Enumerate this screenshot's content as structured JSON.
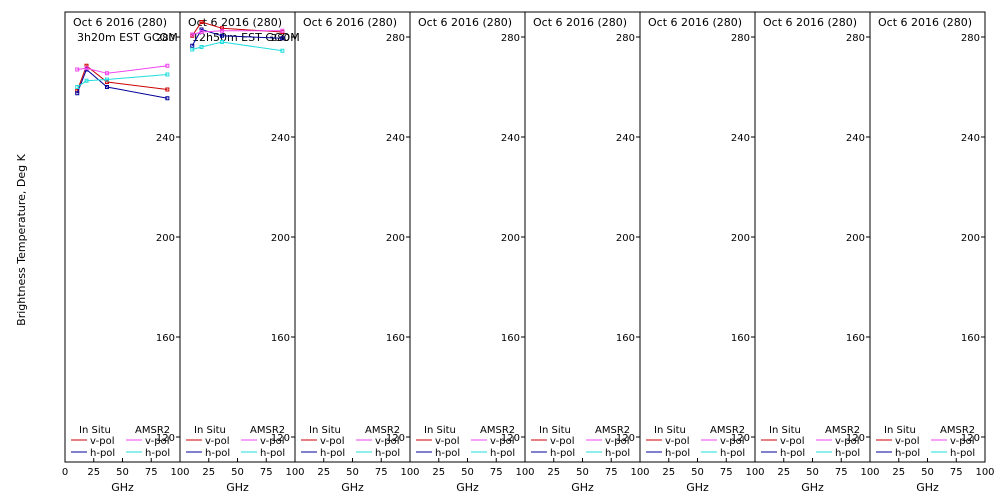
{
  "chart_data": {
    "type": "line",
    "ylabel": "Brightness Temperature, Deg K",
    "xlabel": "GHz",
    "xlim": [
      0,
      100
    ],
    "ylim": [
      110,
      290
    ],
    "x_ticks": [
      0,
      25,
      50,
      75,
      100
    ],
    "y_ticks": [
      120,
      160,
      200,
      240,
      280
    ],
    "legend": {
      "in_situ_header": "In Situ",
      "amsr2_header": "AMSR2",
      "v_pol": "v-pol",
      "h_pol": "h-pol"
    },
    "colors": {
      "in_situ_v": "#cc0000",
      "in_situ_h": "#000099",
      "amsr2_v": "#ee44ee",
      "amsr2_h": "#22dddd"
    },
    "panels": [
      {
        "title": "Oct 6 2016 (280)",
        "subtitle": "3h20m EST GCOM",
        "series": [
          {
            "name": "In Situ v-pol",
            "key": "in_situ_v",
            "x": [
              10.65,
              18.7,
              36.5,
              89
            ],
            "y": [
              258.5,
              268.5,
              262,
              259
            ]
          },
          {
            "name": "In Situ h-pol",
            "key": "in_situ_h",
            "x": [
              10.65,
              18.7,
              36.5,
              89
            ],
            "y": [
              257.5,
              267,
              260,
              255.5
            ]
          },
          {
            "name": "AMSR2 v-pol",
            "key": "amsr2_v",
            "x": [
              10.65,
              18.7,
              36.5,
              89
            ],
            "y": [
              267,
              267.5,
              265.5,
              268.5
            ]
          },
          {
            "name": "AMSR2 h-pol",
            "key": "amsr2_h",
            "x": [
              10.65,
              18.7,
              36.5,
              89
            ],
            "y": [
              260,
              262.5,
              263,
              265
            ]
          }
        ]
      },
      {
        "title": "Oct 6 2016 (280)",
        "subtitle": "12h50m EST GCOM",
        "series": [
          {
            "name": "In Situ v-pol",
            "key": "in_situ_v",
            "x": [
              10.65,
              18.7,
              36.5,
              89
            ],
            "y": [
              280.5,
              286,
              283.5,
              282
            ]
          },
          {
            "name": "In Situ h-pol",
            "key": "in_situ_h",
            "x": [
              10.65,
              18.7,
              36.5,
              89
            ],
            "y": [
              276.5,
              283,
              280.5,
              279.5
            ]
          },
          {
            "name": "AMSR2 v-pol",
            "key": "amsr2_v",
            "x": [
              10.65,
              18.7,
              36.5,
              89
            ],
            "y": [
              281,
              282,
              282.5,
              282.5
            ]
          },
          {
            "name": "AMSR2 h-pol",
            "key": "amsr2_h",
            "x": [
              10.65,
              18.7,
              36.5,
              89
            ],
            "y": [
              275,
              276,
              278,
              274.5
            ]
          }
        ]
      },
      {
        "title": "Oct 6 2016 (280)",
        "subtitle": "",
        "series": []
      },
      {
        "title": "Oct 6 2016 (280)",
        "subtitle": "",
        "series": []
      },
      {
        "title": "Oct 6 2016 (280)",
        "subtitle": "",
        "series": []
      },
      {
        "title": "Oct 6 2016 (280)",
        "subtitle": "",
        "series": []
      },
      {
        "title": "Oct 6 2016 (280)",
        "subtitle": "",
        "series": []
      },
      {
        "title": "Oct 6 2016 (280)",
        "subtitle": "",
        "series": []
      }
    ]
  }
}
